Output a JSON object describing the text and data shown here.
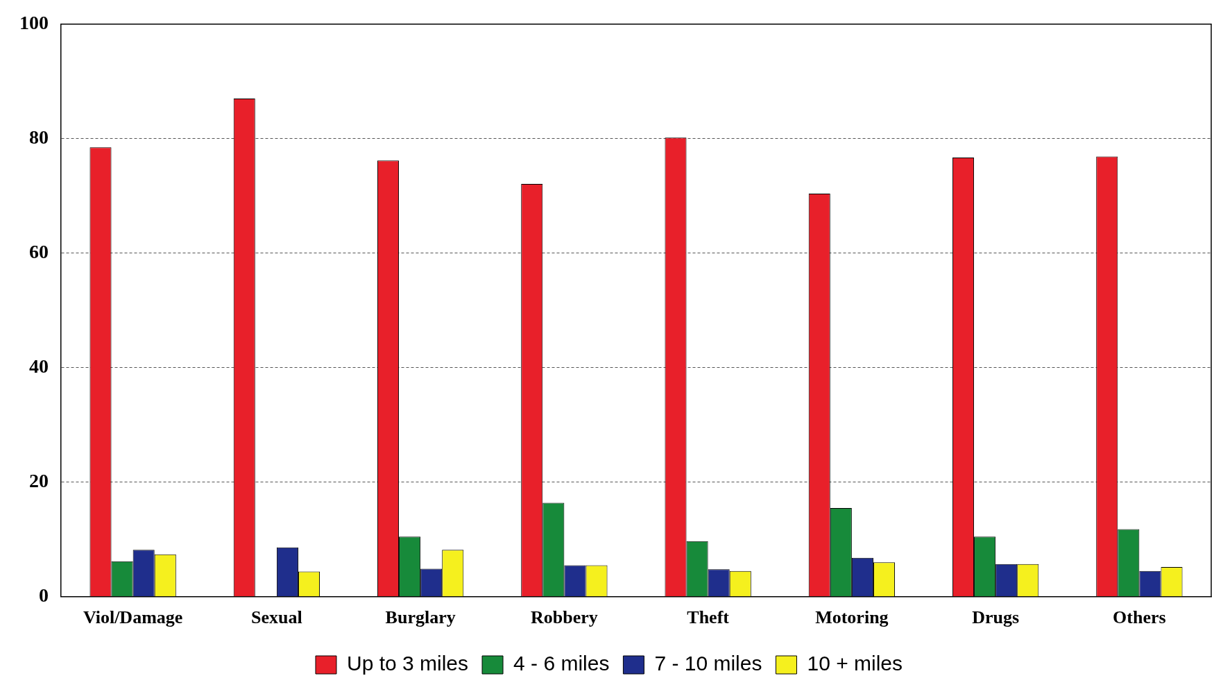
{
  "chart_data": {
    "type": "bar",
    "categories": [
      "Viol/Damage",
      "Sexual",
      "Burglary",
      "Robbery",
      "Theft",
      "Motoring",
      "Drugs",
      "Others"
    ],
    "series": [
      {
        "name": "Up to 3 miles",
        "color": "#e8202a",
        "values": [
          78.5,
          87.0,
          76.2,
          72.1,
          80.2,
          70.4,
          76.7,
          76.9
        ]
      },
      {
        "name": "4 - 6 miles",
        "color": "#178a3a",
        "values": [
          6.2,
          0,
          10.5,
          16.4,
          9.7,
          15.5,
          10.5,
          11.8
        ]
      },
      {
        "name": "7 - 10 miles",
        "color": "#1f2e8c",
        "values": [
          8.2,
          8.6,
          4.9,
          5.5,
          4.8,
          6.8,
          5.7,
          4.5
        ]
      },
      {
        "name": "10 + miles",
        "color": "#f5f01e",
        "values": [
          7.4,
          4.4,
          8.2,
          5.5,
          4.5,
          6.0,
          5.7,
          5.2
        ]
      }
    ],
    "ylim": [
      0,
      100
    ],
    "yticks": [
      0,
      20,
      40,
      60,
      80,
      100
    ],
    "grid": "y",
    "legend": "bottom"
  }
}
